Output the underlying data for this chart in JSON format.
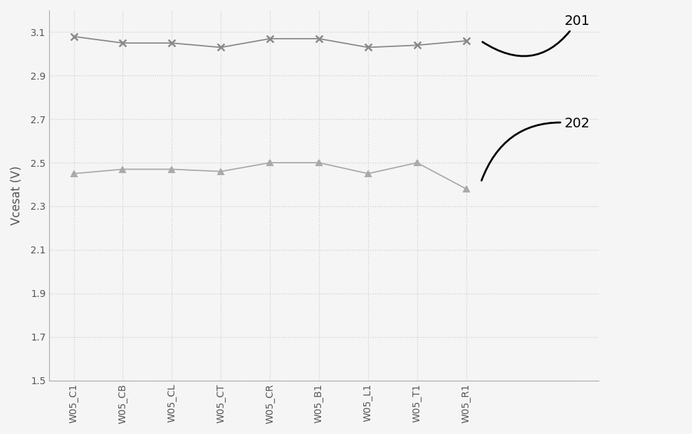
{
  "categories": [
    "W05_C1",
    "W05_CB",
    "W05_CL",
    "W05_CT",
    "W05_CR",
    "W05_B1",
    "W05_L1",
    "W05_T1",
    "W05_R1"
  ],
  "series201": [
    3.08,
    3.05,
    3.05,
    3.03,
    3.07,
    3.07,
    3.03,
    3.04,
    3.06
  ],
  "series202": [
    2.45,
    2.47,
    2.47,
    2.46,
    2.5,
    2.5,
    2.45,
    2.5,
    2.38
  ],
  "color201": "#888888",
  "color202": "#aaaaaa",
  "marker201": "x",
  "marker202": "^",
  "ylabel": "Vcesat (V)",
  "ylim": [
    1.5,
    3.2
  ],
  "yticks": [
    1.5,
    1.7,
    1.9,
    2.1,
    2.3,
    2.5,
    2.7,
    2.9,
    3.1
  ],
  "grid_color": "#cccccc",
  "background_color": "#f5f5f5",
  "plot_bg_color": "#f0f0f0"
}
